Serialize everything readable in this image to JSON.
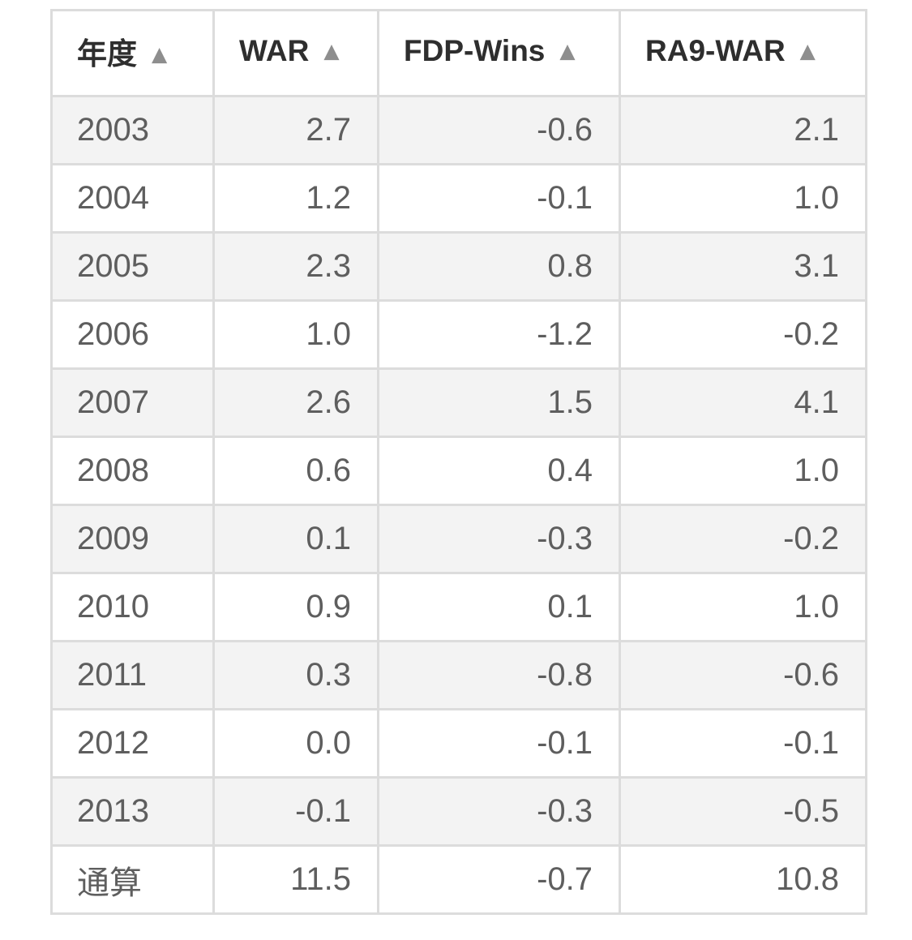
{
  "table": {
    "sort_icon": "▲",
    "columns": [
      {
        "label": "年度"
      },
      {
        "label": "WAR"
      },
      {
        "label": "FDP-Wins"
      },
      {
        "label": "RA9-WAR"
      }
    ],
    "rows": [
      {
        "year": "2003",
        "war": "2.7",
        "fdp_wins": "-0.6",
        "ra9_war": "2.1"
      },
      {
        "year": "2004",
        "war": "1.2",
        "fdp_wins": "-0.1",
        "ra9_war": "1.0"
      },
      {
        "year": "2005",
        "war": "2.3",
        "fdp_wins": "0.8",
        "ra9_war": "3.1"
      },
      {
        "year": "2006",
        "war": "1.0",
        "fdp_wins": "-1.2",
        "ra9_war": "-0.2"
      },
      {
        "year": "2007",
        "war": "2.6",
        "fdp_wins": "1.5",
        "ra9_war": "4.1"
      },
      {
        "year": "2008",
        "war": "0.6",
        "fdp_wins": "0.4",
        "ra9_war": "1.0"
      },
      {
        "year": "2009",
        "war": "0.1",
        "fdp_wins": "-0.3",
        "ra9_war": "-0.2"
      },
      {
        "year": "2010",
        "war": "0.9",
        "fdp_wins": "0.1",
        "ra9_war": "1.0"
      },
      {
        "year": "2011",
        "war": "0.3",
        "fdp_wins": "-0.8",
        "ra9_war": "-0.6"
      },
      {
        "year": "2012",
        "war": "0.0",
        "fdp_wins": "-0.1",
        "ra9_war": "-0.1"
      },
      {
        "year": "2013",
        "war": "-0.1",
        "fdp_wins": "-0.3",
        "ra9_war": "-0.5"
      },
      {
        "year": "通算",
        "war": "11.5",
        "fdp_wins": "-0.7",
        "ra9_war": "10.8"
      }
    ]
  },
  "colors": {
    "stripe_row_bg": "#f3f3f3",
    "border": "#dcdcdc",
    "header_text": "#2e2e2e",
    "data_text": "#5e5e5e",
    "sort_icon": "#8e8e8e"
  }
}
